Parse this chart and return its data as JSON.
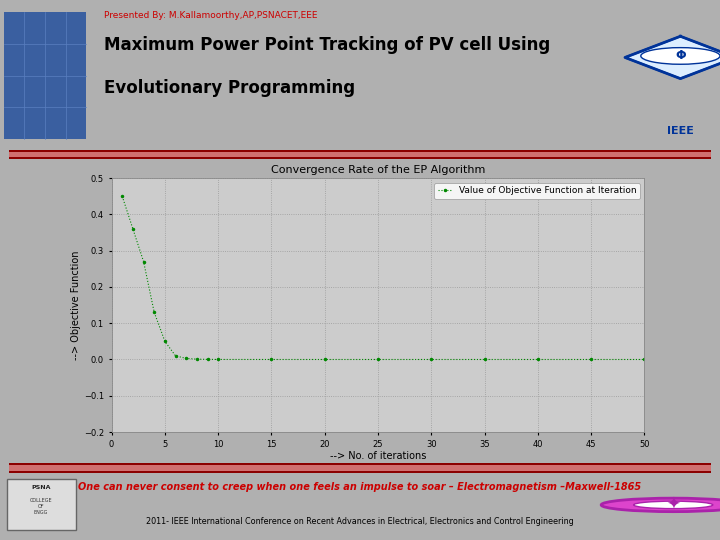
{
  "title_line1": "Maximum Power Point Tracking of PV cell Using",
  "title_line2": "Evolutionary Programming",
  "subtitle": "Presented By: M.Kallamoorthy,AP,PSNACET,EEE",
  "plot_title": "Convergence Rate of the EP Algorithm",
  "xlabel": "--> No. of iterations",
  "ylabel": "--> Objective Function",
  "legend_label": "Value of Objective Function at Iteration",
  "x_ticks": [
    0,
    5,
    10,
    15,
    20,
    25,
    30,
    35,
    40,
    45,
    50
  ],
  "y_ticks": [
    -0.2,
    -0.1,
    0,
    0.1,
    0.2,
    0.3,
    0.4,
    0.5
  ],
  "xlim": [
    0,
    50
  ],
  "ylim": [
    -0.2,
    0.5
  ],
  "slide_bg_color": "#b0b0b0",
  "header_bg_color": "#ffffff",
  "plot_box_bg": "#ffffff",
  "plot_inner_bg": "#cccccc",
  "bar_dark": "#8b0000",
  "bar_light": "#d07070",
  "title_color": "#000000",
  "subtitle_color": "#cc0000",
  "footer_quote": "One can never consent to creep when one feels an impulse to soar – Electromagnetism –Maxwell-1865",
  "footer_conf": "2011- IEEE International Conference on Recent Advances in Electrical, Electronics and Control Engineering",
  "line_color": "#008800",
  "data_x": [
    1,
    2,
    3,
    4,
    5,
    6,
    7,
    8,
    9,
    10,
    15,
    20,
    25,
    30,
    35,
    40,
    45,
    50
  ],
  "data_y": [
    0.45,
    0.36,
    0.27,
    0.13,
    0.05,
    0.01,
    0.003,
    0.001,
    0.0003,
    0.0001,
    1e-05,
    1e-06,
    1e-07,
    1e-08,
    1e-09,
    1e-10,
    1e-11,
    1e-12
  ],
  "solar_color": "#3a5fa0",
  "ieee_diamond_color": "#003399",
  "footer_quote_color": "#cc0000",
  "footer_conf_color": "#000000"
}
